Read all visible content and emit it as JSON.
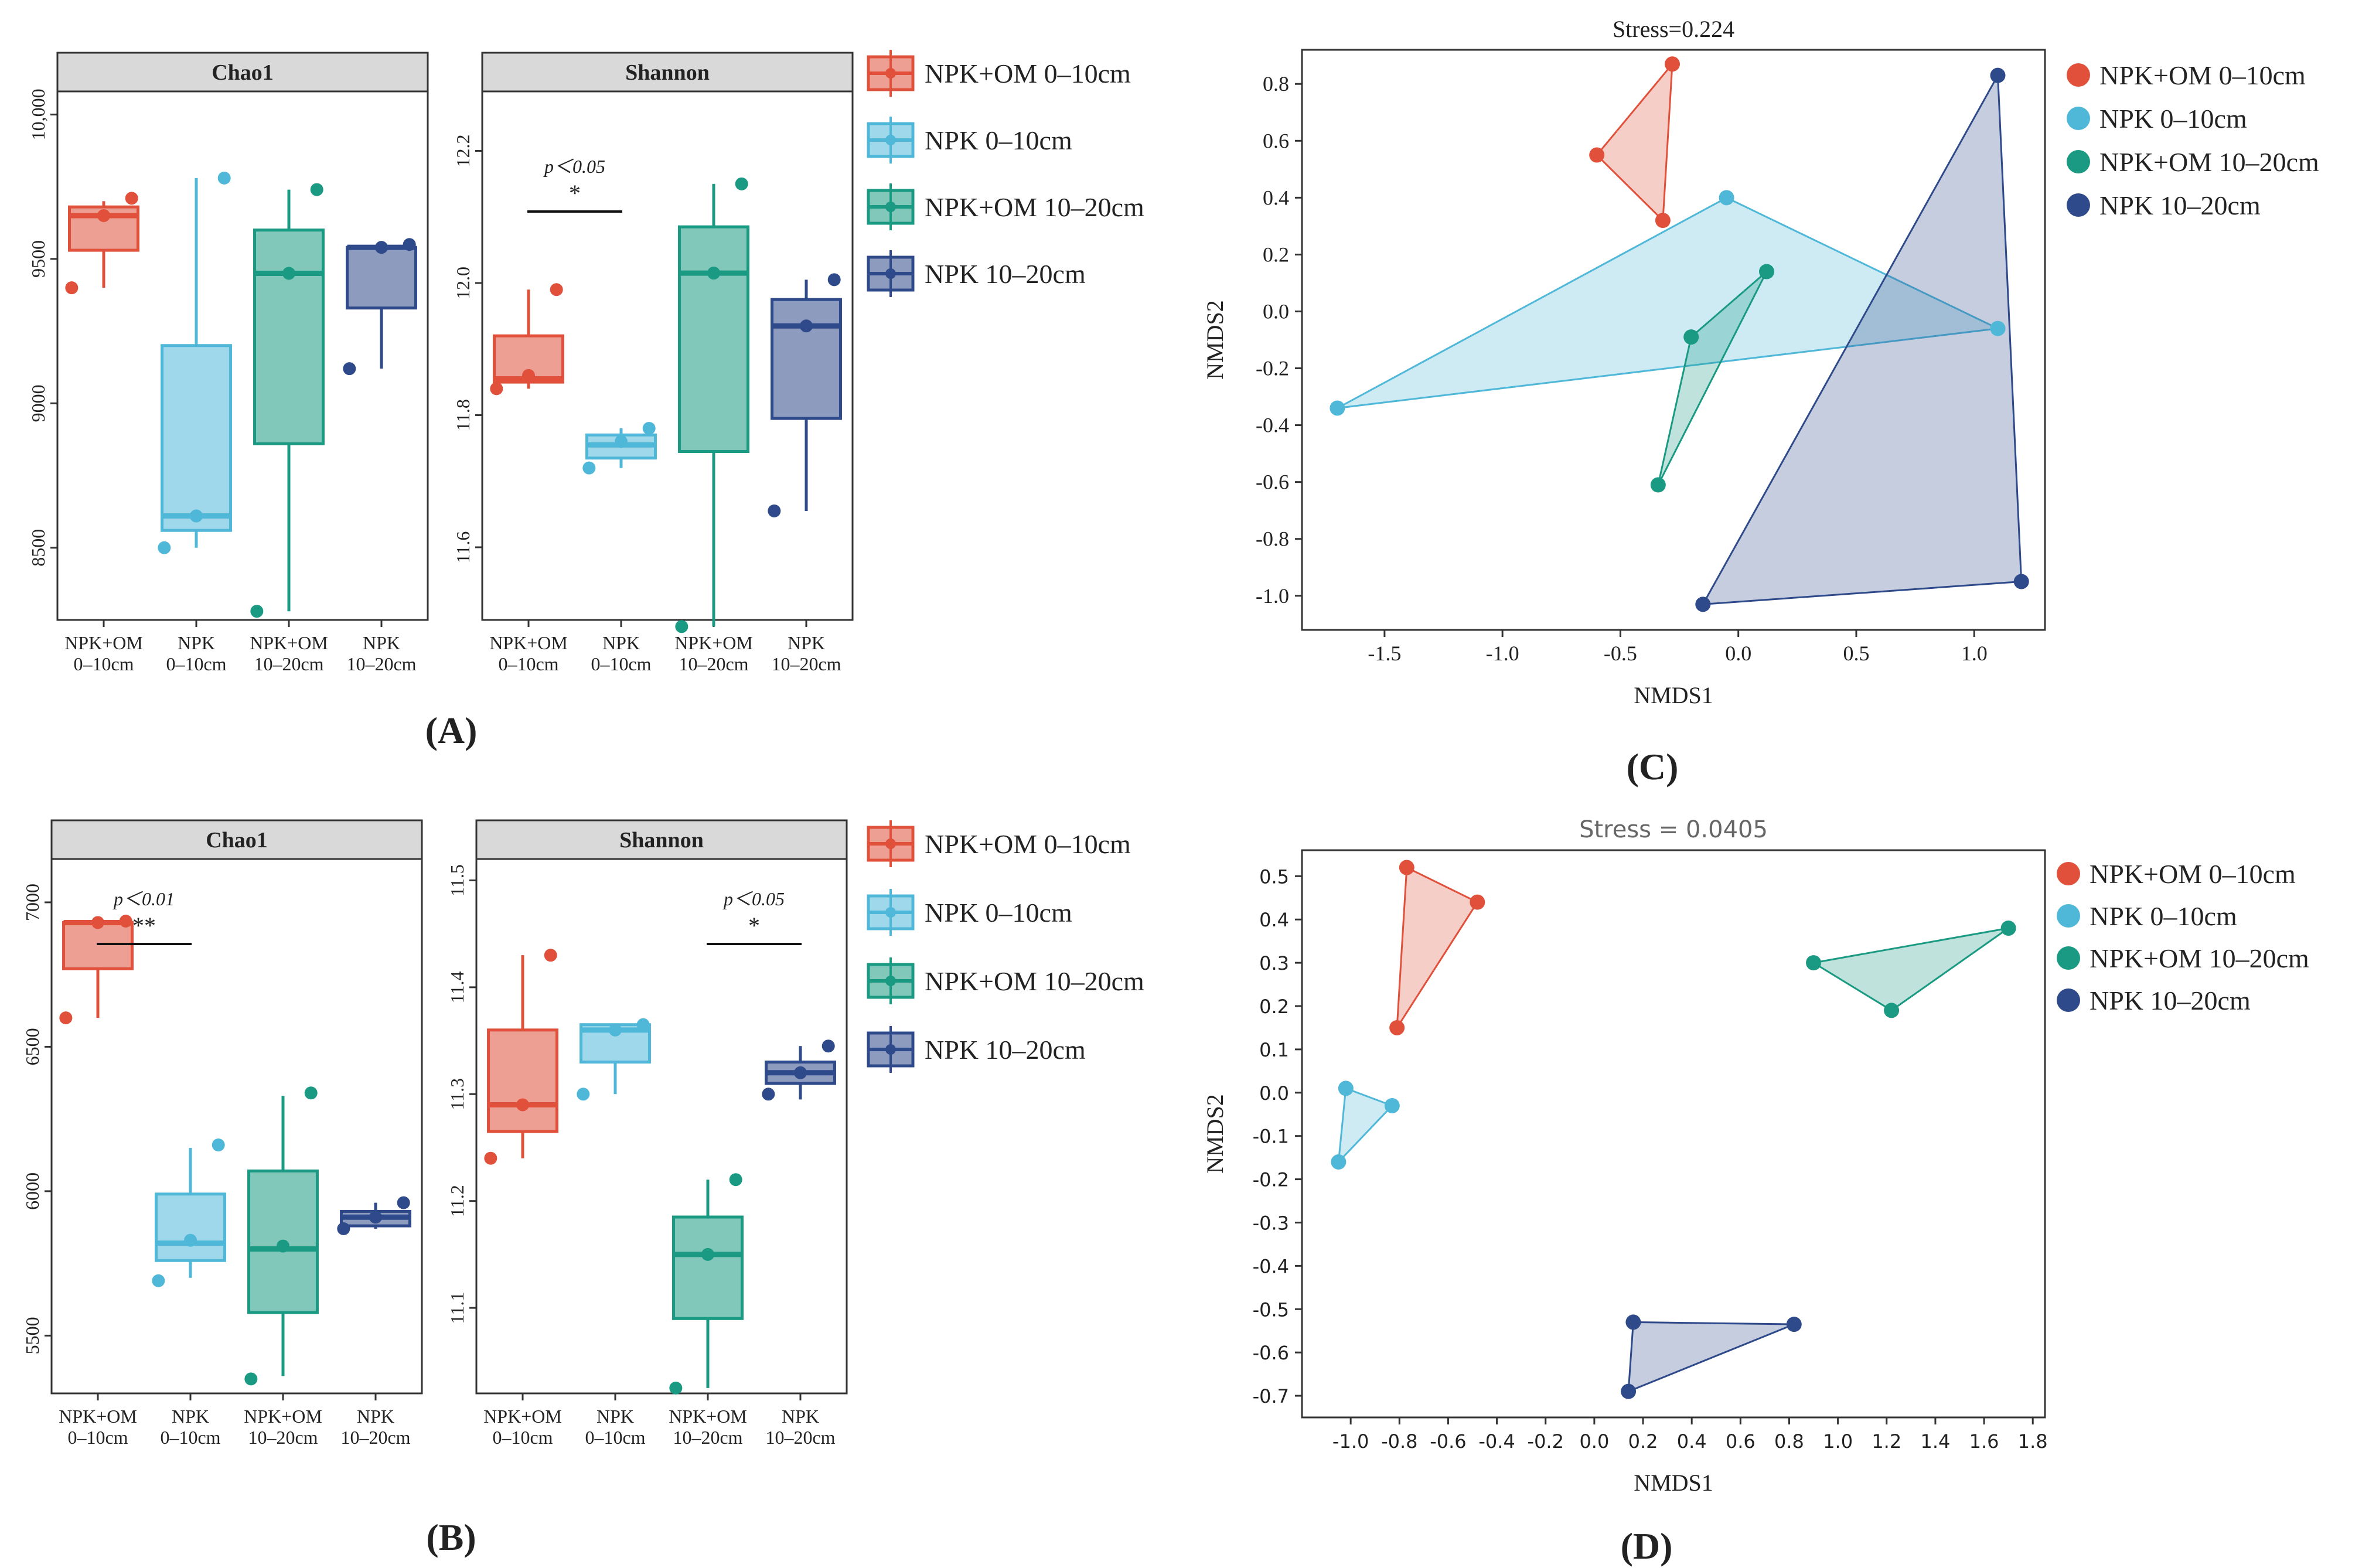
{
  "colors": {
    "npk_om_0_10": "#e0503a",
    "npk_0_10": "#4fb8d8",
    "npk_om_10_20": "#1a9a82",
    "npk_10_20": "#2f4a8a"
  },
  "panel_labels": [
    "(A)",
    "(B)",
    "(C)",
    "(D)"
  ],
  "box_categories": [
    [
      "NPK+OM",
      "0–10cm"
    ],
    [
      "NPK",
      "0–10cm"
    ],
    [
      "NPK+OM",
      "10–20cm"
    ],
    [
      "NPK",
      "10–20cm"
    ]
  ],
  "legend": {
    "items": [
      "NPK+OM 0–10cm",
      "NPK 0–10cm",
      "NPK+OM 10–20cm",
      "NPK 10–20cm"
    ]
  },
  "chart_data": [
    {
      "id": "A-chao1",
      "type": "box",
      "title": "Chao1",
      "ylim": [
        8250,
        10080
      ],
      "yticks": [
        8500,
        9000,
        9500,
        10000
      ],
      "ytick_labels": [
        "8500",
        "9000",
        "9500",
        "10,000"
      ],
      "boxes": [
        {
          "q1": 9530,
          "median": 9650,
          "q3": 9680,
          "wlo": 9400,
          "whi": 9700,
          "points": [
            9400,
            9650,
            9710
          ]
        },
        {
          "q1": 8560,
          "median": 8610,
          "q3": 9200,
          "wlo": 8500,
          "whi": 9780,
          "points": [
            8500,
            8610,
            9780
          ]
        },
        {
          "q1": 8860,
          "median": 9450,
          "q3": 9600,
          "wlo": 8280,
          "whi": 9740,
          "points": [
            8280,
            9450,
            9740
          ]
        },
        {
          "q1": 9330,
          "median": 9540,
          "q3": 9540,
          "wlo": 9120,
          "whi": 9550,
          "points": [
            9120,
            9540,
            9550
          ]
        }
      ],
      "significance": []
    },
    {
      "id": "A-shannon",
      "type": "box",
      "title": "Shannon",
      "ylim": [
        11.49,
        12.29
      ],
      "yticks": [
        11.6,
        11.8,
        12.0,
        12.2
      ],
      "ytick_labels": [
        "11.6",
        "11.8",
        "12.0",
        "12.2"
      ],
      "boxes": [
        {
          "q1": 11.85,
          "median": 11.855,
          "q3": 11.92,
          "wlo": 11.84,
          "whi": 11.99,
          "points": [
            11.84,
            11.86,
            11.99
          ]
        },
        {
          "q1": 11.735,
          "median": 11.755,
          "q3": 11.77,
          "wlo": 11.72,
          "whi": 11.78,
          "points": [
            11.72,
            11.76,
            11.78
          ]
        },
        {
          "q1": 11.745,
          "median": 12.015,
          "q3": 12.085,
          "wlo": 11.48,
          "whi": 12.15,
          "points": [
            11.48,
            12.015,
            12.15
          ]
        },
        {
          "q1": 11.795,
          "median": 11.935,
          "q3": 11.975,
          "wlo": 11.655,
          "whi": 12.005,
          "points": [
            11.655,
            11.935,
            12.005
          ]
        }
      ],
      "significance": [
        {
          "from": 0,
          "to": 1,
          "p_label": "p＜0.05",
          "stars": "*"
        }
      ]
    },
    {
      "id": "B-chao1",
      "type": "box",
      "title": "Chao1",
      "ylim": [
        5300,
        7150
      ],
      "yticks": [
        5500,
        6000,
        6500,
        7000
      ],
      "ytick_labels": [
        "5500",
        "6000",
        "6500",
        "7000"
      ],
      "boxes": [
        {
          "q1": 6770,
          "median": 6930,
          "q3": 6930,
          "wlo": 6600,
          "whi": 6935,
          "points": [
            6600,
            6930,
            6935
          ]
        },
        {
          "q1": 5760,
          "median": 5820,
          "q3": 5990,
          "wlo": 5700,
          "whi": 6150,
          "points": [
            5690,
            5830,
            6160
          ]
        },
        {
          "q1": 5580,
          "median": 5800,
          "q3": 6070,
          "wlo": 5360,
          "whi": 6330,
          "points": [
            5350,
            5810,
            6340
          ]
        },
        {
          "q1": 5880,
          "median": 5910,
          "q3": 5930,
          "wlo": 5870,
          "whi": 5960,
          "points": [
            5870,
            5910,
            5960
          ]
        }
      ],
      "significance": [
        {
          "from": 0,
          "to": 1,
          "p_label": "p＜0.01",
          "stars": "**"
        }
      ]
    },
    {
      "id": "B-shannon",
      "type": "box",
      "title": "Shannon",
      "ylim": [
        11.02,
        11.52
      ],
      "yticks": [
        11.1,
        11.2,
        11.3,
        11.4,
        11.5
      ],
      "ytick_labels": [
        "11.1",
        "11.2",
        "11.3",
        "11.4",
        "11.5"
      ],
      "boxes": [
        {
          "q1": 11.265,
          "median": 11.29,
          "q3": 11.36,
          "wlo": 11.24,
          "whi": 11.43,
          "points": [
            11.24,
            11.29,
            11.43
          ]
        },
        {
          "q1": 11.33,
          "median": 11.36,
          "q3": 11.365,
          "wlo": 11.3,
          "whi": 11.365,
          "points": [
            11.3,
            11.36,
            11.365
          ]
        },
        {
          "q1": 11.09,
          "median": 11.15,
          "q3": 11.185,
          "wlo": 11.025,
          "whi": 11.22,
          "points": [
            11.025,
            11.15,
            11.22
          ]
        },
        {
          "q1": 11.31,
          "median": 11.32,
          "q3": 11.33,
          "wlo": 11.295,
          "whi": 11.345,
          "points": [
            11.3,
            11.32,
            11.345
          ]
        }
      ],
      "significance": [
        {
          "from": 2,
          "to": 3,
          "p_label": "p＜0.05",
          "stars": "*"
        }
      ]
    },
    {
      "id": "C-nmds",
      "type": "scatter",
      "title": "Stress=0.224",
      "xlabel": "NMDS1",
      "ylabel": "NMDS2",
      "xlim": [
        -1.85,
        1.3
      ],
      "ylim": [
        -1.12,
        0.92
      ],
      "xticks": [
        -1.5,
        -1.0,
        -0.5,
        0.0,
        0.5,
        1.0
      ],
      "xtick_labels": [
        "-1.5",
        "-1.0",
        "-0.5",
        "0.0",
        "0.5",
        "1.0"
      ],
      "yticks": [
        -1.0,
        -0.8,
        -0.6,
        -0.4,
        -0.2,
        0.0,
        0.2,
        0.4,
        0.6,
        0.8
      ],
      "ytick_labels": [
        "-1.0",
        "-0.8",
        "-0.6",
        "-0.4",
        "-0.2",
        "0.0",
        "0.2",
        "0.4",
        "0.6",
        "0.8"
      ],
      "series": [
        {
          "name": "NPK+OM 0–10cm",
          "points": [
            [
              -0.28,
              0.87
            ],
            [
              -0.6,
              0.55
            ],
            [
              -0.32,
              0.32
            ]
          ]
        },
        {
          "name": "NPK 0–10cm",
          "points": [
            [
              -0.05,
              0.4
            ],
            [
              1.1,
              -0.06
            ],
            [
              -1.7,
              -0.34
            ]
          ]
        },
        {
          "name": "NPK+OM 10–20cm",
          "points": [
            [
              0.12,
              0.14
            ],
            [
              -0.2,
              -0.09
            ],
            [
              -0.34,
              -0.61
            ]
          ]
        },
        {
          "name": "NPK 10–20cm",
          "points": [
            [
              1.1,
              0.83
            ],
            [
              1.2,
              -0.95
            ],
            [
              -0.15,
              -1.03
            ]
          ]
        }
      ]
    },
    {
      "id": "D-nmds",
      "type": "scatter",
      "title": "Stress = 0.0405",
      "xlabel": "NMDS1",
      "ylabel": "NMDS2",
      "xlim": [
        -1.2,
        1.85
      ],
      "ylim": [
        -0.75,
        0.56
      ],
      "xticks": [
        -1.0,
        -0.8,
        -0.6,
        -0.4,
        -0.2,
        0.0,
        0.2,
        0.4,
        0.6,
        0.8,
        1.0,
        1.2,
        1.4,
        1.6,
        1.8
      ],
      "xtick_labels": [
        "-1.0",
        "-0.8",
        "-0.6",
        "-0.4",
        "-0.2",
        "0.0",
        "0.2",
        "0.4",
        "0.6",
        "0.8",
        "1.0",
        "1.2",
        "1.4",
        "1.6",
        "1.8"
      ],
      "yticks": [
        -0.7,
        -0.6,
        -0.5,
        -0.4,
        -0.3,
        -0.2,
        -0.1,
        0.0,
        0.1,
        0.2,
        0.3,
        0.4,
        0.5
      ],
      "ytick_labels": [
        "-0.7",
        "-0.6",
        "-0.5",
        "-0.4",
        "-0.3",
        "-0.2",
        "-0.1",
        "0.0",
        "0.1",
        "0.2",
        "0.3",
        "0.4",
        "0.5"
      ],
      "series": [
        {
          "name": "NPK+OM 0–10cm",
          "points": [
            [
              -0.77,
              0.52
            ],
            [
              -0.48,
              0.44
            ],
            [
              -0.81,
              0.15
            ]
          ]
        },
        {
          "name": "NPK 0–10cm",
          "points": [
            [
              -1.02,
              0.01
            ],
            [
              -0.83,
              -0.03
            ],
            [
              -1.05,
              -0.16
            ]
          ]
        },
        {
          "name": "NPK+OM 10–20cm",
          "points": [
            [
              0.9,
              0.3
            ],
            [
              1.7,
              0.38
            ],
            [
              1.22,
              0.19
            ]
          ]
        },
        {
          "name": "NPK 10–20cm",
          "points": [
            [
              0.16,
              -0.53
            ],
            [
              0.82,
              -0.535
            ],
            [
              0.14,
              -0.69
            ]
          ]
        }
      ]
    }
  ]
}
